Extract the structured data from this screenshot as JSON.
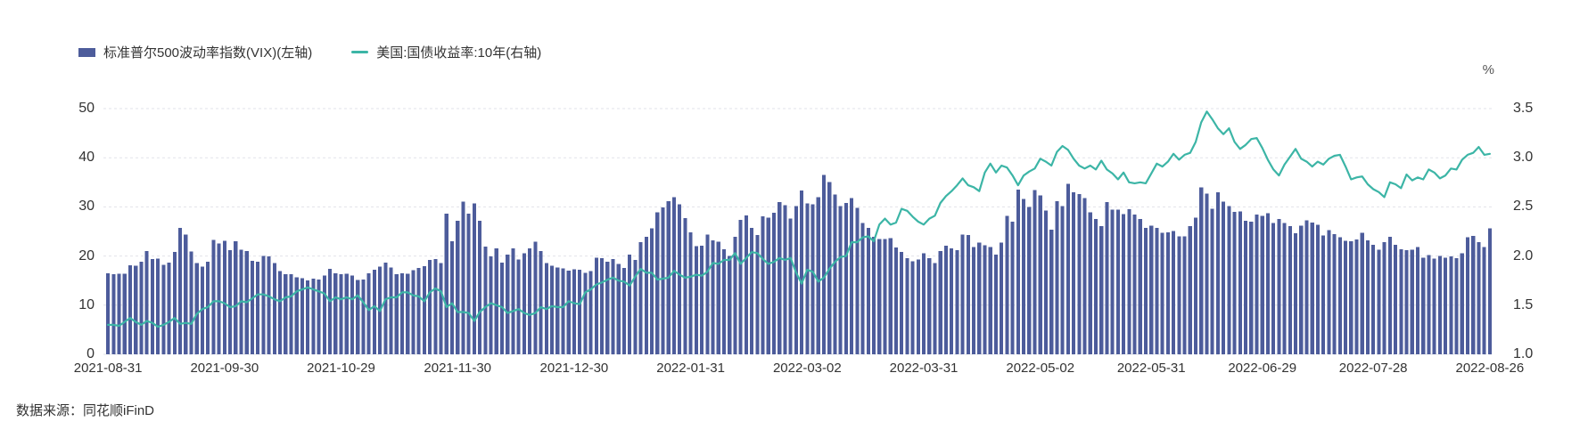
{
  "legend": {
    "items": [
      {
        "label": "标准普尔500波动率指数(VIX)(左轴)",
        "type": "bar",
        "color": "#4d5c9b"
      },
      {
        "label": "美国:国债收益率:10年(右轴)",
        "type": "line",
        "color": "#3cb5a6"
      }
    ]
  },
  "source": {
    "text": "数据来源：同花顺iFinD"
  },
  "chart_data": {
    "type": "bar+line",
    "title": "",
    "grid": true,
    "legend_position": "top-left",
    "unit_label": "%",
    "left_axis": {
      "ticks": [
        0,
        10,
        20,
        30,
        40,
        50
      ],
      "range": [
        0,
        50
      ]
    },
    "right_axis": {
      "ticks": [
        "1.0",
        "1.5",
        "2.0",
        "2.5",
        "3.0",
        "3.5"
      ],
      "range": [
        1.0,
        3.5
      ],
      "unit": "%"
    },
    "x_tick_labels": [
      "2021-08-31",
      "2021-09-30",
      "2021-10-29",
      "2021-11-30",
      "2021-12-30",
      "2022-01-31",
      "2022-03-02",
      "2022-03-31",
      "2022-05-02",
      "2022-05-31",
      "2022-06-29",
      "2022-07-28",
      "2022-08-26"
    ],
    "x_tick_indices": [
      0,
      21,
      42,
      63,
      84,
      105,
      126,
      147,
      168,
      188,
      208,
      228,
      249
    ],
    "series": [
      {
        "name": "标准普尔500波动率指数(VIX)(左轴)",
        "type": "bar",
        "axis": "left",
        "color": "#4d5c9b",
        "values": [
          16.5,
          16.3,
          16.4,
          16.4,
          18.1,
          18.0,
          18.8,
          21.0,
          19.4,
          19.5,
          18.2,
          18.7,
          20.8,
          25.7,
          24.4,
          20.9,
          18.6,
          17.8,
          18.8,
          23.3,
          22.6,
          23.1,
          21.2,
          23.0,
          21.3,
          21.0,
          19.0,
          18.8,
          20.0,
          19.9,
          18.6,
          16.9,
          16.3,
          16.3,
          15.7,
          15.5,
          15.0,
          15.4,
          15.2,
          16.0,
          17.4,
          16.5,
          16.3,
          16.4,
          16.0,
          15.1,
          15.2,
          16.5,
          17.2,
          17.8,
          18.7,
          17.7,
          16.3,
          16.5,
          16.4,
          17.1,
          17.6,
          17.9,
          19.2,
          19.4,
          18.6,
          28.6,
          23.0,
          27.2,
          31.1,
          28.6,
          30.7,
          27.2,
          21.9,
          19.9,
          21.6,
          18.7,
          20.3,
          21.6,
          19.3,
          20.6,
          21.6,
          22.9,
          21.0,
          18.6,
          18.0,
          17.7,
          17.5,
          17.0,
          17.3,
          17.2,
          16.6,
          16.9,
          19.7,
          19.6,
          18.8,
          19.4,
          18.4,
          17.6,
          20.3,
          19.2,
          22.8,
          23.9,
          25.6,
          28.9,
          29.9,
          31.2,
          32.0,
          30.5,
          27.7,
          24.8,
          22.0,
          22.1,
          24.4,
          23.2,
          22.9,
          21.4,
          20.0,
          23.9,
          27.4,
          28.3,
          25.7,
          24.3,
          28.1,
          27.8,
          28.8,
          31.0,
          30.3,
          27.6,
          30.2,
          33.3,
          30.7,
          30.5,
          32.0,
          36.5,
          35.1,
          32.5,
          30.2,
          30.8,
          31.8,
          29.8,
          26.7,
          25.7,
          23.9,
          23.5,
          23.5,
          23.6,
          21.7,
          20.8,
          19.6,
          18.9,
          19.3,
          20.6,
          19.6,
          18.6,
          21.0,
          22.1,
          21.6,
          21.2,
          24.4,
          24.3,
          21.8,
          22.7,
          22.2,
          21.8,
          20.3,
          22.7,
          28.2,
          27.0,
          33.5,
          31.6,
          30.0,
          33.4,
          32.3,
          29.3,
          25.4,
          31.2,
          30.2,
          34.7,
          33.0,
          32.6,
          31.8,
          28.9,
          27.5,
          26.1,
          31.0,
          29.4,
          29.4,
          28.5,
          29.5,
          28.4,
          27.5,
          25.7,
          26.2,
          25.7,
          24.7,
          24.8,
          25.1,
          24.0,
          24.0,
          26.1,
          27.8,
          34.0,
          32.7,
          29.6,
          33.0,
          31.1,
          30.2,
          29.0,
          29.1,
          27.2,
          27.0,
          28.4,
          28.2,
          28.7,
          26.7,
          27.5,
          26.7,
          26.1,
          24.6,
          26.2,
          27.3,
          26.8,
          26.4,
          24.2,
          25.3,
          24.5,
          23.8,
          23.1,
          23.0,
          23.4,
          24.7,
          23.2,
          22.3,
          21.3,
          22.8,
          23.9,
          22.3,
          21.4,
          21.2,
          21.3,
          21.8,
          19.7,
          20.2,
          19.5,
          20.0,
          19.7,
          19.9,
          19.6,
          20.6,
          23.8,
          24.1,
          22.8,
          21.8,
          25.6
        ]
      },
      {
        "name": "美国:国债收益率:10年(右轴)",
        "type": "line",
        "axis": "right",
        "color": "#3cb5a6",
        "values": [
          1.3,
          1.3,
          1.29,
          1.33,
          1.37,
          1.33,
          1.3,
          1.34,
          1.32,
          1.28,
          1.3,
          1.33,
          1.37,
          1.31,
          1.32,
          1.31,
          1.41,
          1.46,
          1.48,
          1.54,
          1.54,
          1.52,
          1.48,
          1.49,
          1.54,
          1.53,
          1.57,
          1.61,
          1.61,
          1.59,
          1.56,
          1.54,
          1.58,
          1.59,
          1.64,
          1.66,
          1.68,
          1.66,
          1.64,
          1.62,
          1.54,
          1.58,
          1.56,
          1.58,
          1.56,
          1.6,
          1.53,
          1.45,
          1.49,
          1.44,
          1.56,
          1.58,
          1.58,
          1.63,
          1.63,
          1.6,
          1.59,
          1.54,
          1.63,
          1.67,
          1.64,
          1.48,
          1.52,
          1.43,
          1.43,
          1.42,
          1.34,
          1.43,
          1.48,
          1.52,
          1.5,
          1.48,
          1.42,
          1.44,
          1.46,
          1.42,
          1.4,
          1.42,
          1.48,
          1.46,
          1.49,
          1.48,
          1.48,
          1.54,
          1.52,
          1.51,
          1.63,
          1.66,
          1.71,
          1.73,
          1.76,
          1.78,
          1.75,
          1.74,
          1.7,
          1.79,
          1.87,
          1.83,
          1.83,
          1.76,
          1.77,
          1.78,
          1.85,
          1.81,
          1.78,
          1.79,
          1.81,
          1.8,
          1.84,
          1.93,
          1.92,
          1.96,
          1.96,
          2.03,
          1.92,
          1.98,
          2.04,
          2.03,
          1.97,
          1.92,
          1.94,
          1.98,
          1.96,
          1.98,
          1.83,
          1.72,
          1.86,
          1.84,
          1.74,
          1.78,
          1.87,
          1.94,
          1.99,
          2.0,
          2.14,
          2.14,
          2.19,
          2.2,
          2.15,
          2.32,
          2.38,
          2.32,
          2.34,
          2.48,
          2.46,
          2.4,
          2.35,
          2.32,
          2.38,
          2.41,
          2.54,
          2.61,
          2.66,
          2.72,
          2.79,
          2.72,
          2.7,
          2.66,
          2.85,
          2.94,
          2.85,
          2.92,
          2.9,
          2.82,
          2.72,
          2.82,
          2.86,
          2.89,
          2.99,
          2.96,
          2.92,
          3.06,
          3.12,
          3.08,
          2.99,
          2.92,
          2.89,
          2.92,
          2.88,
          2.97,
          2.88,
          2.84,
          2.78,
          2.85,
          2.75,
          2.74,
          2.75,
          2.74,
          2.84,
          2.94,
          2.91,
          2.96,
          3.04,
          2.98,
          3.03,
          3.05,
          3.16,
          3.36,
          3.47,
          3.39,
          3.3,
          3.24,
          3.3,
          3.16,
          3.09,
          3.13,
          3.19,
          3.2,
          3.1,
          2.98,
          2.88,
          2.82,
          2.93,
          3.01,
          3.09,
          2.99,
          2.96,
          2.91,
          2.96,
          2.93,
          2.99,
          3.02,
          3.03,
          2.91,
          2.78,
          2.8,
          2.81,
          2.73,
          2.68,
          2.65,
          2.6,
          2.75,
          2.73,
          2.69,
          2.83,
          2.77,
          2.8,
          2.78,
          2.88,
          2.85,
          2.79,
          2.82,
          2.89,
          2.88,
          2.98,
          3.03,
          3.05,
          3.11,
          3.03,
          3.04
        ]
      }
    ]
  }
}
